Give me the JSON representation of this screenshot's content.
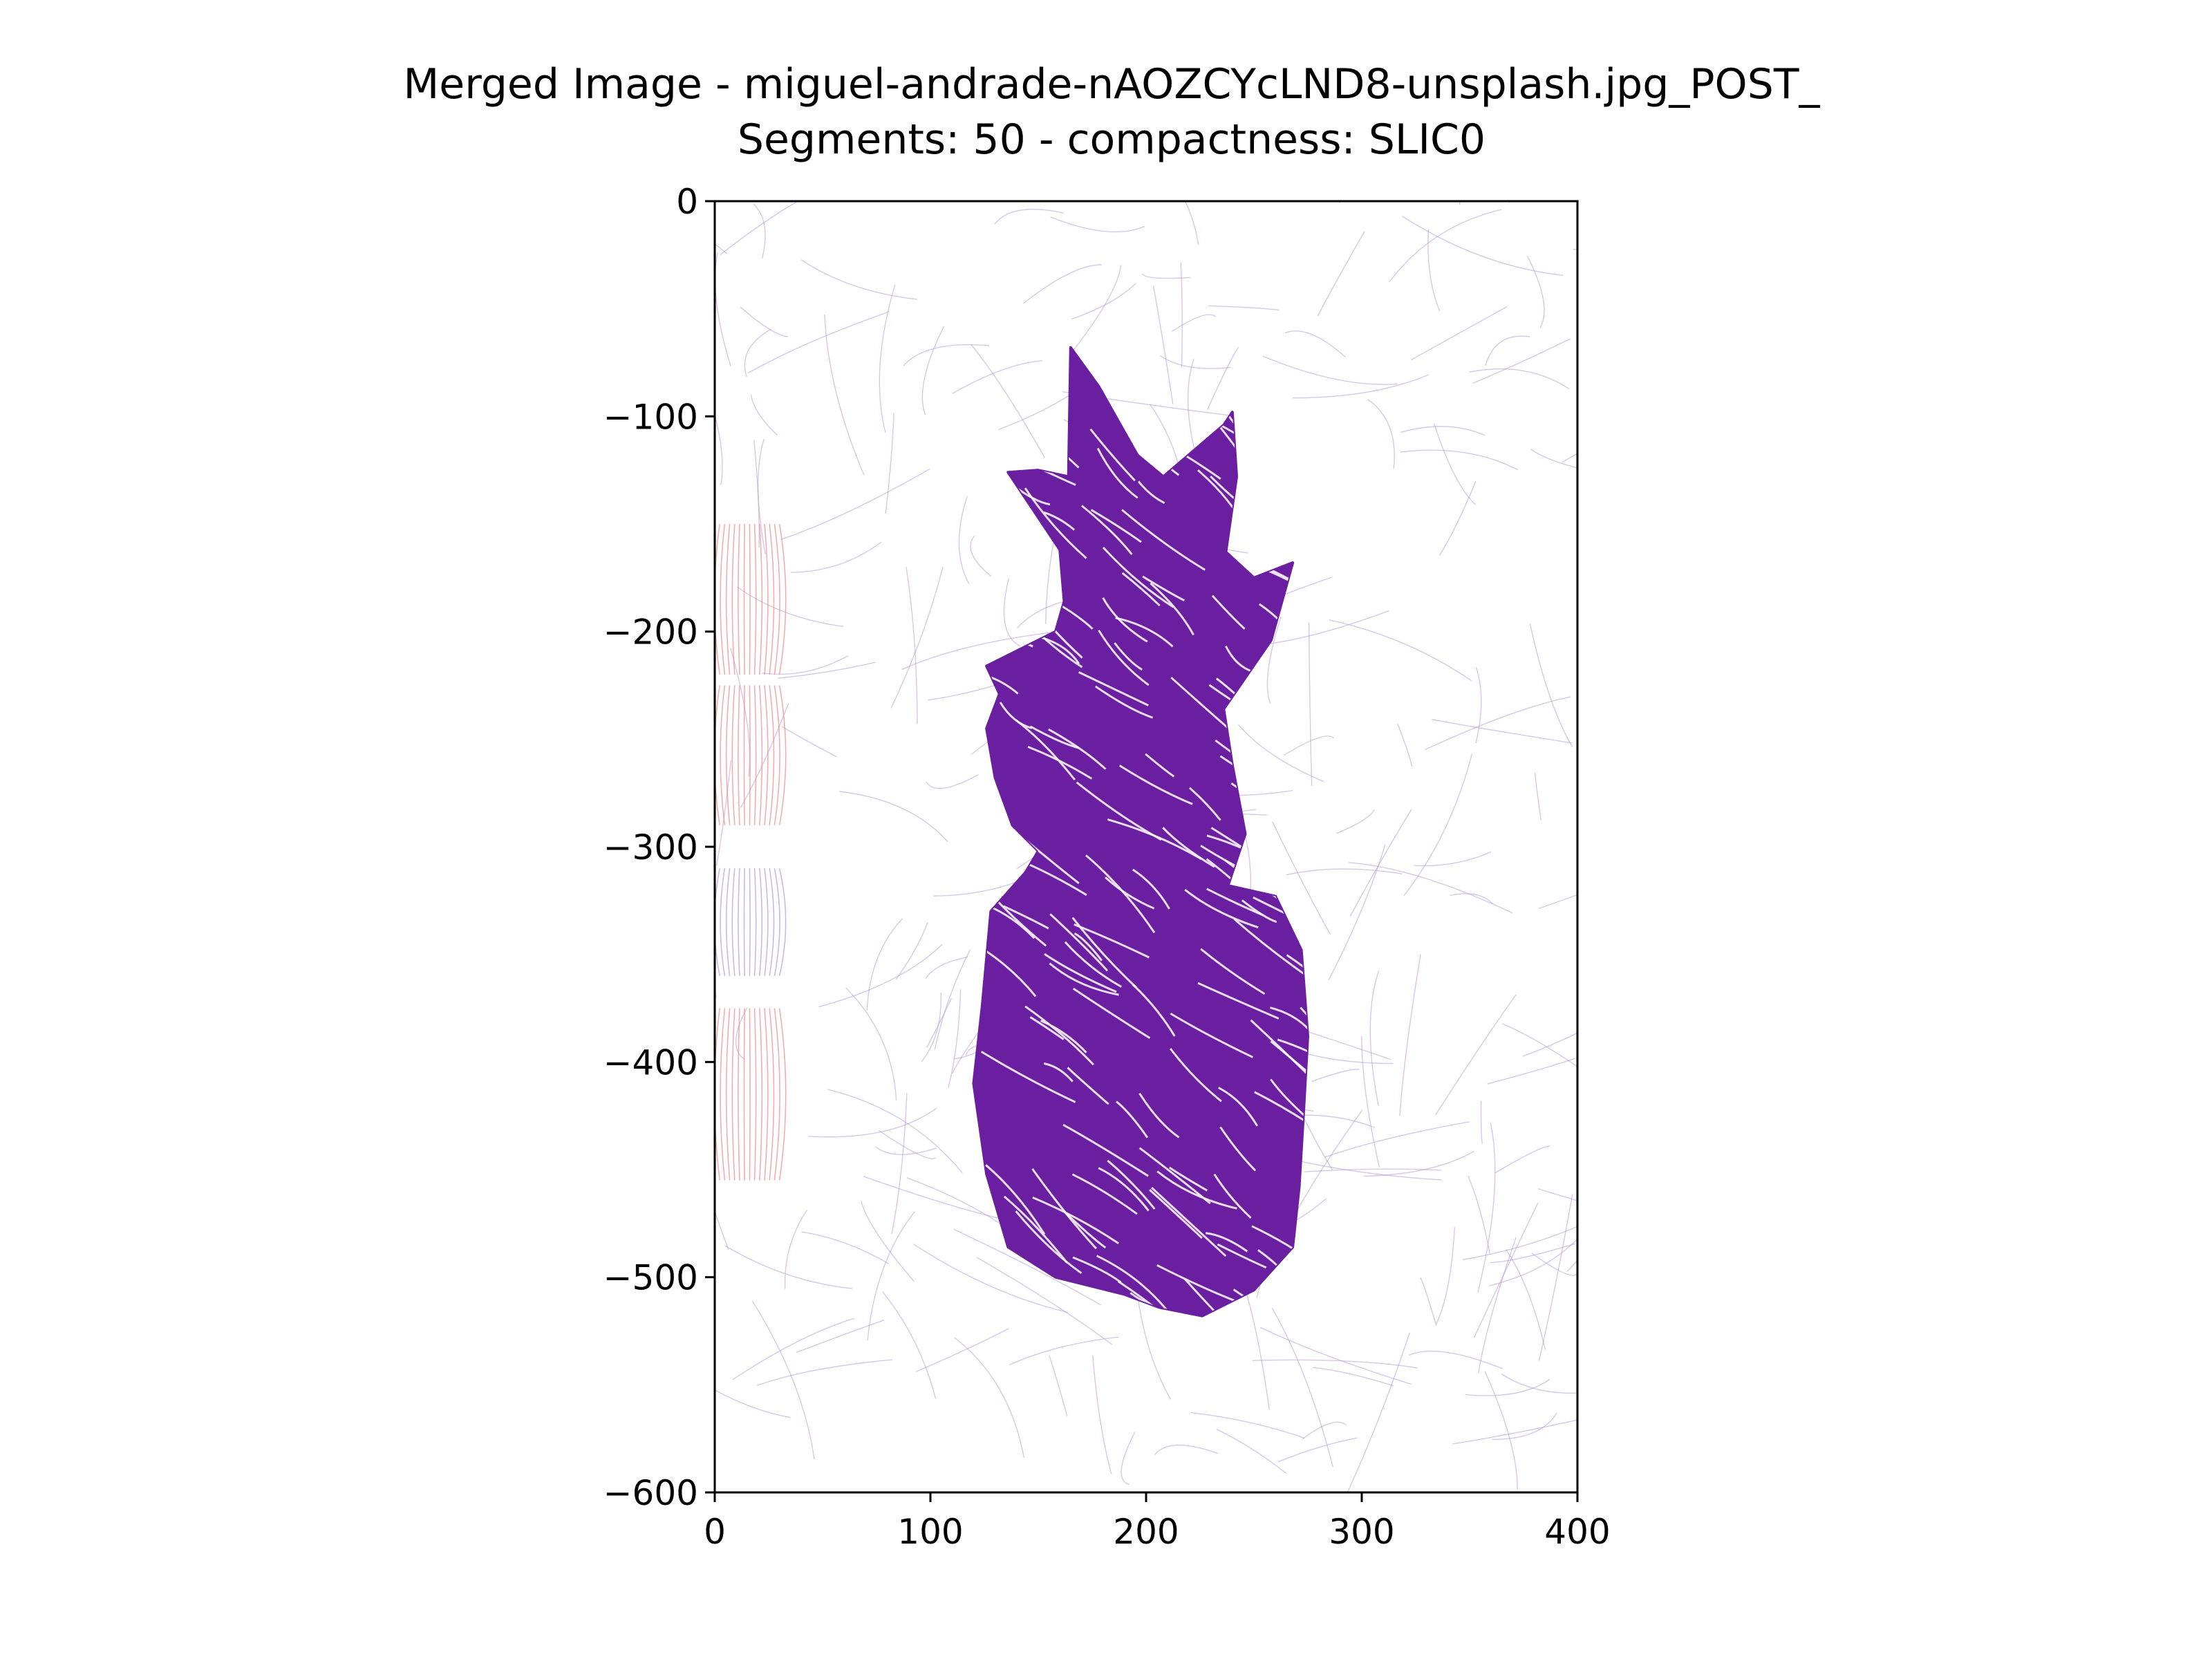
{
  "chart_data": {
    "type": "scatter",
    "title_line1": "Merged Image - miguel-andrade-nAOZCYcLND8-unsplash.jpg_POST_",
    "title_line2": "Segments: 50 - compactness: SLIC0",
    "xlabel": "",
    "ylabel": "",
    "xlim": [
      0,
      400
    ],
    "ylim": [
      -600,
      0
    ],
    "x_ticks": [
      0,
      100,
      200,
      300,
      400
    ],
    "y_ticks": [
      0,
      -100,
      -200,
      -300,
      -400,
      -500,
      -600
    ],
    "x_tick_labels": [
      "0",
      "100",
      "200",
      "300",
      "400"
    ],
    "y_tick_labels": [
      "0",
      "−100",
      "−200",
      "−300",
      "−400",
      "−500",
      "−600"
    ],
    "grid": false,
    "colors": {
      "main_streamlines": "#6a1fa0",
      "background_streamlines": "#b79ad6",
      "edge_streamlines": "#f08a8a"
    },
    "pineapple_outline": [
      [
        165,
        -68
      ],
      [
        178,
        -86
      ],
      [
        196,
        -118
      ],
      [
        208,
        -128
      ],
      [
        236,
        -104
      ],
      [
        240,
        -98
      ],
      [
        242,
        -128
      ],
      [
        237,
        -163
      ],
      [
        250,
        -175
      ],
      [
        268,
        -168
      ],
      [
        258,
        -204
      ],
      [
        236,
        -236
      ],
      [
        240,
        -262
      ],
      [
        246,
        -294
      ],
      [
        238,
        -318
      ],
      [
        260,
        -323
      ],
      [
        272,
        -348
      ],
      [
        275,
        -388
      ],
      [
        273,
        -424
      ],
      [
        271,
        -458
      ],
      [
        268,
        -486
      ],
      [
        250,
        -506
      ],
      [
        226,
        -518
      ],
      [
        206,
        -514
      ],
      [
        190,
        -508
      ],
      [
        158,
        -500
      ],
      [
        136,
        -486
      ],
      [
        126,
        -452
      ],
      [
        120,
        -410
      ],
      [
        124,
        -374
      ],
      [
        128,
        -330
      ],
      [
        144,
        -312
      ],
      [
        150,
        -302
      ],
      [
        138,
        -290
      ],
      [
        130,
        -268
      ],
      [
        126,
        -245
      ],
      [
        132,
        -229
      ],
      [
        126,
        -216
      ],
      [
        142,
        -208
      ],
      [
        158,
        -200
      ],
      [
        162,
        -186
      ],
      [
        160,
        -162
      ],
      [
        148,
        -144
      ],
      [
        136,
        -126
      ],
      [
        150,
        -125
      ],
      [
        164,
        -128
      ]
    ],
    "edge_bands": [
      {
        "x_range": [
          0,
          30
        ],
        "y_range": [
          -150,
          -220
        ],
        "color": "#f08a8a"
      },
      {
        "x_range": [
          0,
          30
        ],
        "y_range": [
          -225,
          -290
        ],
        "color": "#f08a8a"
      },
      {
        "x_range": [
          0,
          30
        ],
        "y_range": [
          -375,
          -455
        ],
        "color": "#f08a8a"
      },
      {
        "x_range": [
          0,
          30
        ],
        "y_range": [
          -310,
          -360
        ],
        "color": "#b79ad6"
      }
    ]
  }
}
